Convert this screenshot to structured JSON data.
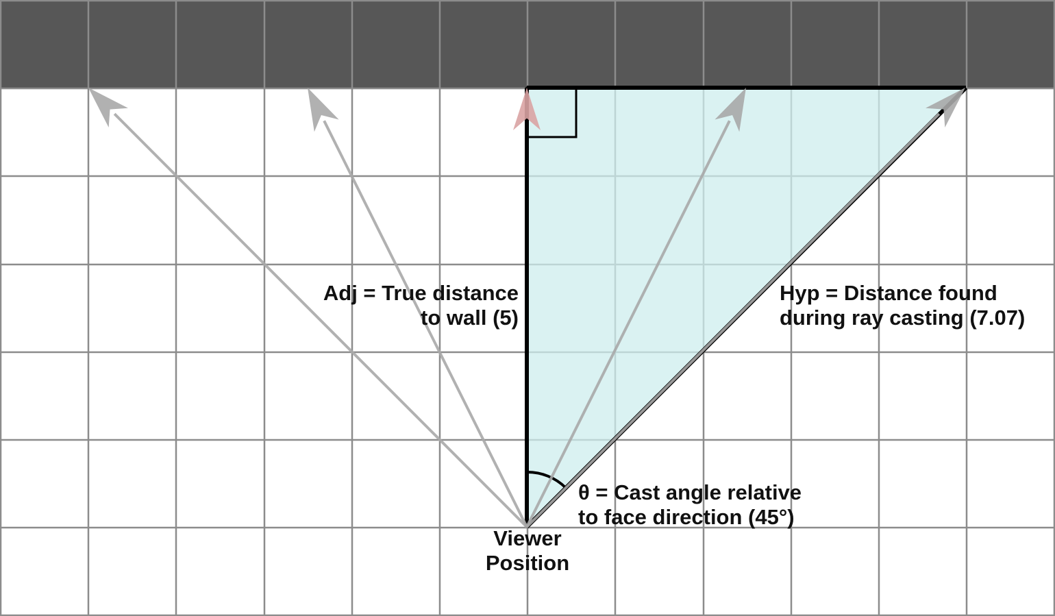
{
  "colors": {
    "wall": "#575757",
    "grid_line": "#8c8c8c",
    "triangle_fill": "#d7f0f1",
    "triangle_stroke": "#000000",
    "ray_gray": "#a9a9a9",
    "ray_red": "#d9a3a3"
  },
  "rays": [
    {
      "name": "ray-left-far",
      "color": "gray"
    },
    {
      "name": "ray-left-near",
      "color": "gray"
    },
    {
      "name": "ray-center",
      "color": "red"
    },
    {
      "name": "ray-right-near",
      "color": "gray"
    },
    {
      "name": "ray-right-far",
      "color": "gray"
    }
  ],
  "labels": {
    "adj": {
      "line1": "Adj = True distance",
      "line2": "to wall (5)"
    },
    "hyp": {
      "line1": "Hyp = Distance found",
      "line2": "during ray casting (7.07)"
    },
    "theta": {
      "line1": "θ = Cast angle relative",
      "line2": "to face direction (45°)"
    },
    "viewer": {
      "line1": "Viewer",
      "line2": "Position"
    }
  }
}
